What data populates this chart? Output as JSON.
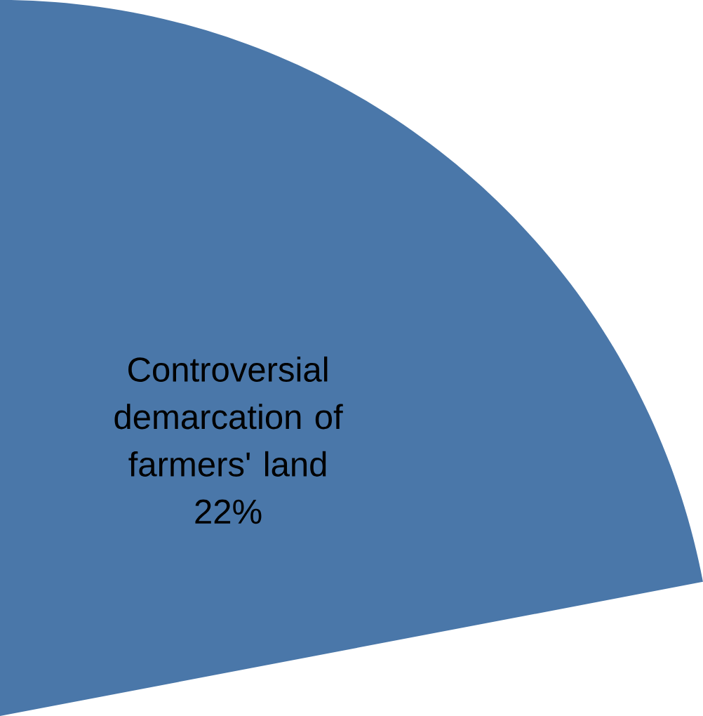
{
  "chart_data": {
    "type": "pie",
    "categories": [
      "Controversial demarcation of farmers' land"
    ],
    "values": [
      22
    ],
    "colors": [
      "#4a77a9"
    ],
    "value_labels": [
      "22%"
    ]
  }
}
